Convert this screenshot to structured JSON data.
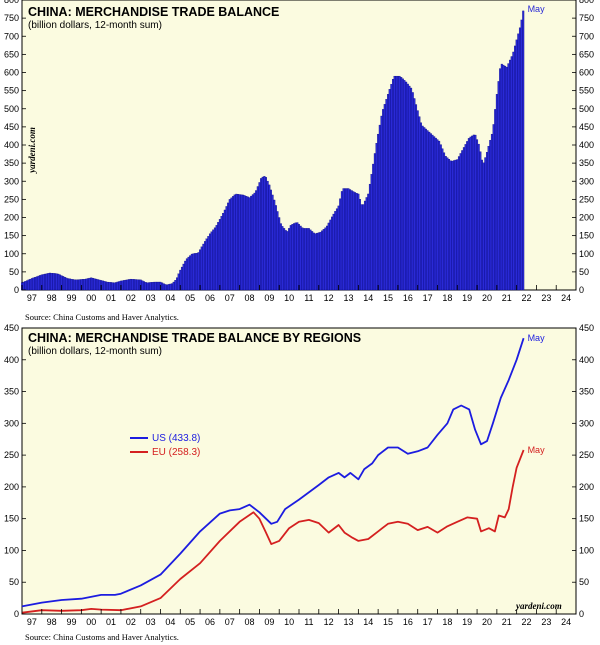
{
  "chart_data": [
    {
      "type": "bar",
      "title": "CHINA: MERCHANDISE TRADE BALANCE",
      "subtitle": "(billion dollars, 12-month sum)",
      "source": "Source: China Customs and Haver Analytics.",
      "brand": "yardeni.com",
      "end_label": "May",
      "ylim": [
        0,
        800
      ],
      "yticks": [
        0,
        50,
        100,
        150,
        200,
        250,
        300,
        350,
        400,
        450,
        500,
        550,
        600,
        650,
        700,
        750,
        800
      ],
      "xlim": [
        1997,
        2025
      ],
      "xticklabels": [
        "97",
        "98",
        "99",
        "00",
        "01",
        "02",
        "03",
        "04",
        "05",
        "06",
        "07",
        "08",
        "09",
        "10",
        "11",
        "12",
        "13",
        "14",
        "15",
        "16",
        "17",
        "18",
        "19",
        "20",
        "21",
        "22",
        "23",
        "24"
      ],
      "grid": false,
      "color": "#2a2ad6",
      "points": [
        [
          1997.0,
          20
        ],
        [
          1997.5,
          32
        ],
        [
          1998.0,
          42
        ],
        [
          1998.4,
          47
        ],
        [
          1998.8,
          45
        ],
        [
          1999.3,
          32
        ],
        [
          1999.7,
          28
        ],
        [
          2000.2,
          30
        ],
        [
          2000.5,
          34
        ],
        [
          2000.9,
          28
        ],
        [
          2001.3,
          22
        ],
        [
          2001.7,
          20
        ],
        [
          2002.0,
          25
        ],
        [
          2002.5,
          30
        ],
        [
          2003.0,
          28
        ],
        [
          2003.3,
          20
        ],
        [
          2003.7,
          22
        ],
        [
          2004.0,
          22
        ],
        [
          2004.3,
          14
        ],
        [
          2004.6,
          18
        ],
        [
          2004.8,
          30
        ],
        [
          2005.0,
          55
        ],
        [
          2005.3,
          85
        ],
        [
          2005.6,
          100
        ],
        [
          2005.9,
          102
        ],
        [
          2006.2,
          130
        ],
        [
          2006.5,
          155
        ],
        [
          2006.8,
          175
        ],
        [
          2007.2,
          215
        ],
        [
          2007.5,
          250
        ],
        [
          2007.8,
          265
        ],
        [
          2008.2,
          262
        ],
        [
          2008.5,
          255
        ],
        [
          2008.8,
          270
        ],
        [
          2009.1,
          310
        ],
        [
          2009.3,
          315
        ],
        [
          2009.5,
          290
        ],
        [
          2009.8,
          240
        ],
        [
          2010.1,
          180
        ],
        [
          2010.4,
          160
        ],
        [
          2010.6,
          180
        ],
        [
          2010.9,
          187
        ],
        [
          2011.2,
          170
        ],
        [
          2011.5,
          170
        ],
        [
          2011.8,
          155
        ],
        [
          2012.1,
          160
        ],
        [
          2012.4,
          175
        ],
        [
          2012.7,
          205
        ],
        [
          2013.0,
          232
        ],
        [
          2013.2,
          280
        ],
        [
          2013.5,
          280
        ],
        [
          2013.8,
          270
        ],
        [
          2014.0,
          265
        ],
        [
          2014.2,
          230
        ],
        [
          2014.5,
          265
        ],
        [
          2014.7,
          330
        ],
        [
          2014.9,
          400
        ],
        [
          2015.2,
          490
        ],
        [
          2015.5,
          540
        ],
        [
          2015.8,
          590
        ],
        [
          2016.1,
          590
        ],
        [
          2016.4,
          575
        ],
        [
          2016.7,
          555
        ],
        [
          2016.9,
          515
        ],
        [
          2017.2,
          455
        ],
        [
          2017.5,
          440
        ],
        [
          2017.8,
          425
        ],
        [
          2018.1,
          410
        ],
        [
          2018.4,
          370
        ],
        [
          2018.7,
          355
        ],
        [
          2019.0,
          360
        ],
        [
          2019.3,
          390
        ],
        [
          2019.6,
          420
        ],
        [
          2019.9,
          430
        ],
        [
          2020.1,
          400
        ],
        [
          2020.3,
          345
        ],
        [
          2020.5,
          380
        ],
        [
          2020.8,
          440
        ],
        [
          2021.0,
          540
        ],
        [
          2021.2,
          625
        ],
        [
          2021.5,
          615
        ],
        [
          2021.8,
          650
        ],
        [
          2022.0,
          690
        ],
        [
          2022.2,
          730
        ],
        [
          2022.35,
          775
        ]
      ]
    },
    {
      "type": "line",
      "title": "CHINA: MERCHANDISE TRADE BALANCE BY REGIONS",
      "subtitle": "(billion dollars, 12-month sum)",
      "source": "Source: China Customs and Haver Analytics.",
      "brand": "yardeni.com",
      "ylim": [
        0,
        450
      ],
      "yticks": [
        0,
        50,
        100,
        150,
        200,
        250,
        300,
        350,
        400,
        450
      ],
      "xlim": [
        1997,
        2025
      ],
      "xticklabels": [
        "97",
        "98",
        "99",
        "00",
        "01",
        "02",
        "03",
        "04",
        "05",
        "06",
        "07",
        "08",
        "09",
        "10",
        "11",
        "12",
        "13",
        "14",
        "15",
        "16",
        "17",
        "18",
        "19",
        "20",
        "21",
        "22",
        "23",
        "24"
      ],
      "grid": false,
      "legend_position": "middle-left",
      "series": [
        {
          "name": "US (433.8)",
          "end_label": "May",
          "color": "#1c1ce0",
          "points": [
            [
              1997.0,
              12
            ],
            [
              1998.0,
              18
            ],
            [
              1999.0,
              22
            ],
            [
              2000.0,
              24
            ],
            [
              2001.0,
              30
            ],
            [
              2001.7,
              30
            ],
            [
              2002.0,
              32
            ],
            [
              2003.0,
              45
            ],
            [
              2004.0,
              62
            ],
            [
              2005.0,
              95
            ],
            [
              2006.0,
              130
            ],
            [
              2007.0,
              158
            ],
            [
              2007.5,
              163
            ],
            [
              2008.0,
              165
            ],
            [
              2008.5,
              172
            ],
            [
              2009.0,
              160
            ],
            [
              2009.6,
              142
            ],
            [
              2009.9,
              145
            ],
            [
              2010.3,
              165
            ],
            [
              2011.0,
              180
            ],
            [
              2012.0,
              203
            ],
            [
              2012.5,
              215
            ],
            [
              2013.0,
              222
            ],
            [
              2013.3,
              215
            ],
            [
              2013.6,
              222
            ],
            [
              2014.0,
              212
            ],
            [
              2014.3,
              228
            ],
            [
              2014.7,
              237
            ],
            [
              2015.0,
              250
            ],
            [
              2015.5,
              262
            ],
            [
              2016.0,
              262
            ],
            [
              2016.5,
              252
            ],
            [
              2017.0,
              256
            ],
            [
              2017.5,
              262
            ],
            [
              2018.0,
              282
            ],
            [
              2018.5,
              300
            ],
            [
              2018.8,
              322
            ],
            [
              2019.2,
              328
            ],
            [
              2019.6,
              322
            ],
            [
              2019.9,
              290
            ],
            [
              2020.2,
              267
            ],
            [
              2020.5,
              272
            ],
            [
              2020.8,
              300
            ],
            [
              2021.2,
              340
            ],
            [
              2021.6,
              368
            ],
            [
              2022.0,
              400
            ],
            [
              2022.35,
              434
            ]
          ]
        },
        {
          "name": "EU (258.3)",
          "end_label": "May",
          "color": "#d42020",
          "points": [
            [
              1997.0,
              2
            ],
            [
              1998.0,
              6
            ],
            [
              1999.0,
              5
            ],
            [
              2000.0,
              6
            ],
            [
              2000.5,
              8
            ],
            [
              2001.0,
              7
            ],
            [
              2002.0,
              6
            ],
            [
              2003.0,
              12
            ],
            [
              2004.0,
              25
            ],
            [
              2005.0,
              55
            ],
            [
              2006.0,
              80
            ],
            [
              2007.0,
              115
            ],
            [
              2008.0,
              145
            ],
            [
              2008.7,
              160
            ],
            [
              2009.0,
              150
            ],
            [
              2009.3,
              130
            ],
            [
              2009.6,
              110
            ],
            [
              2010.0,
              115
            ],
            [
              2010.5,
              135
            ],
            [
              2011.0,
              145
            ],
            [
              2011.5,
              148
            ],
            [
              2012.0,
              143
            ],
            [
              2012.5,
              128
            ],
            [
              2013.0,
              140
            ],
            [
              2013.3,
              128
            ],
            [
              2013.7,
              120
            ],
            [
              2014.0,
              115
            ],
            [
              2014.5,
              118
            ],
            [
              2015.0,
              130
            ],
            [
              2015.5,
              142
            ],
            [
              2016.0,
              145
            ],
            [
              2016.5,
              142
            ],
            [
              2017.0,
              132
            ],
            [
              2017.5,
              137
            ],
            [
              2018.0,
              128
            ],
            [
              2018.5,
              138
            ],
            [
              2019.0,
              145
            ],
            [
              2019.5,
              152
            ],
            [
              2020.0,
              150
            ],
            [
              2020.2,
              130
            ],
            [
              2020.6,
              135
            ],
            [
              2020.9,
              130
            ],
            [
              2021.1,
              155
            ],
            [
              2021.4,
              152
            ],
            [
              2021.6,
              165
            ],
            [
              2021.8,
              200
            ],
            [
              2022.0,
              230
            ],
            [
              2022.35,
              258
            ]
          ]
        }
      ]
    }
  ]
}
